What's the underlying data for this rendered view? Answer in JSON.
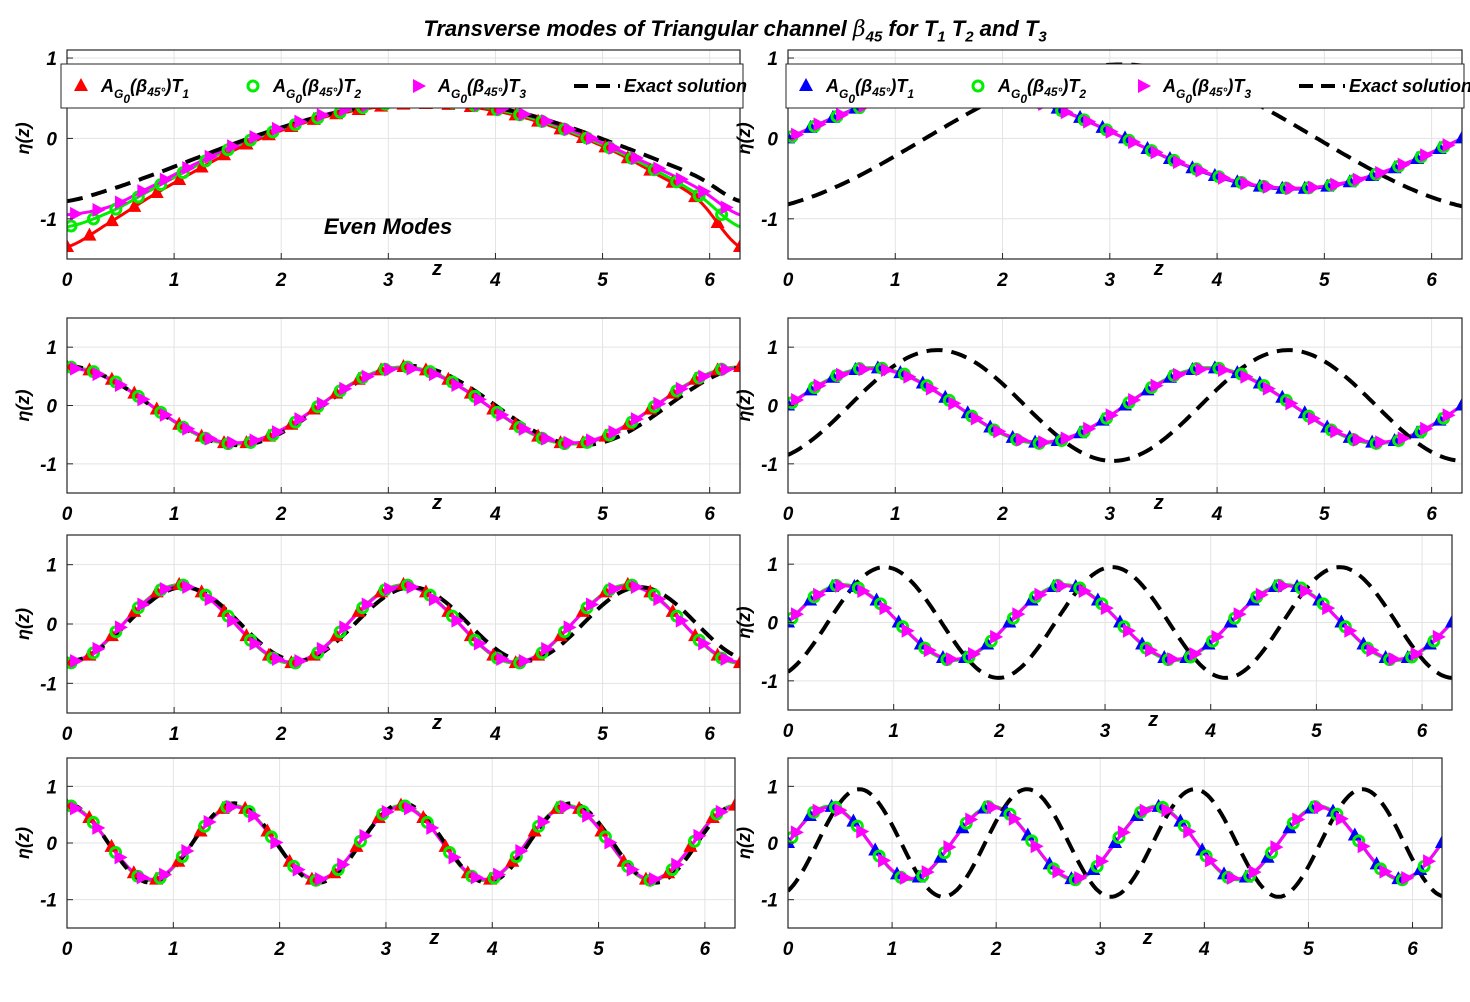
{
  "figure_title": {
    "part1": "Transverse modes of Triangular channel ",
    "beta": "β",
    "beta_sub": "45",
    "part2": " for T",
    "t1": "1",
    "space1": " T",
    "t2": "2",
    "part3": " and T",
    "t3": "3"
  },
  "legend_left": {
    "entries": [
      {
        "prefix": "A",
        "sub": "G",
        "subsub": "0",
        "body": "(β",
        "body_sub": "45°",
        "tail": ")T",
        "tail_sub": "1",
        "color": "#ff0000",
        "marker": "triangle-up"
      },
      {
        "prefix": "A",
        "sub": "G",
        "subsub": "0",
        "body": "(β",
        "body_sub": "45°",
        "tail": ")T",
        "tail_sub": "2",
        "color": "#00ee00",
        "marker": "circle"
      },
      {
        "prefix": "A",
        "sub": "G",
        "subsub": "0",
        "body": "(β",
        "body_sub": "45°",
        "tail": ")T",
        "tail_sub": "3",
        "color": "#ff00ff",
        "marker": "triangle-right"
      },
      {
        "label": "Exact solution",
        "color": "#000000",
        "marker": "dash"
      }
    ]
  },
  "legend_right": {
    "entries": [
      {
        "prefix": "A",
        "sub": "G",
        "subsub": "0",
        "body": "(β",
        "body_sub": "45°",
        "tail": ")T",
        "tail_sub": "1",
        "color": "#0000ff",
        "marker": "triangle-up"
      },
      {
        "prefix": "A",
        "sub": "G",
        "subsub": "0",
        "body": "(β",
        "body_sub": "45°",
        "tail": ")T",
        "tail_sub": "2",
        "color": "#00ee00",
        "marker": "circle"
      },
      {
        "prefix": "A",
        "sub": "G",
        "subsub": "0",
        "body": "(β",
        "body_sub": "45°",
        "tail": ")T",
        "tail_sub": "3",
        "color": "#ff00ff",
        "marker": "triangle-right"
      },
      {
        "label": "Exact solution",
        "color": "#000000",
        "marker": "dash"
      }
    ]
  },
  "annotation": "Even Modes",
  "chart_data": [
    {
      "id": "even-mode-1",
      "type": "line",
      "xlabel": "z",
      "ylabel": "η(z)",
      "xlim": [
        0,
        6.2832
      ],
      "ylim": [
        -1.5,
        1.1
      ],
      "xticks": [
        "0",
        "1",
        "2",
        "3",
        "4",
        "5",
        "6"
      ],
      "yticks": [
        "1",
        "0",
        "-1"
      ],
      "grid": true,
      "series": [
        {
          "name": "A_G0(β45°)T1",
          "color": "#ff0000",
          "marker": "triangle-up",
          "y_samples": [
            -1.35,
            -1.05,
            -0.72,
            -0.42,
            -0.14,
            0.08,
            0.25,
            0.36,
            0.42,
            0.42,
            0.36,
            0.24,
            0.06,
            -0.16,
            -0.44,
            -0.76,
            -1.35
          ]
        },
        {
          "name": "A_G0(β45°)T2",
          "color": "#00ee00",
          "marker": "circle",
          "y_samples": [
            -1.1,
            -0.92,
            -0.64,
            -0.36,
            -0.1,
            0.1,
            0.26,
            0.38,
            0.45,
            0.45,
            0.38,
            0.26,
            0.08,
            -0.14,
            -0.4,
            -0.7,
            -1.1
          ]
        },
        {
          "name": "A_G0(β45°)T3",
          "color": "#ff00ff",
          "marker": "triangle-right",
          "y_samples": [
            -0.95,
            -0.85,
            -0.6,
            -0.33,
            -0.08,
            0.12,
            0.28,
            0.4,
            0.47,
            0.47,
            0.4,
            0.28,
            0.1,
            -0.12,
            -0.36,
            -0.62,
            -0.95
          ]
        },
        {
          "name": "Exact solution",
          "color": "#000000",
          "marker": "dash",
          "y_samples": [
            -0.78,
            -0.64,
            -0.46,
            -0.26,
            -0.06,
            0.12,
            0.27,
            0.38,
            0.45,
            0.46,
            0.4,
            0.29,
            0.13,
            -0.06,
            -0.26,
            -0.48,
            -0.78
          ]
        }
      ]
    },
    {
      "id": "odd-mode-1",
      "type": "line",
      "xlabel": "z",
      "ylabel": "η(z)",
      "xlim": [
        0,
        6.2832
      ],
      "ylim": [
        -1.5,
        1.1
      ],
      "xticks": [
        "0",
        "1",
        "2",
        "3",
        "4",
        "5",
        "6"
      ],
      "yticks": [
        "1",
        "0",
        "-1"
      ],
      "grid": true,
      "series": [
        {
          "name": "A_G0(β45°)T1",
          "color": "#0000ff",
          "marker": "triangle-up",
          "amp": 0.63,
          "freq": 1.0,
          "phase": 0
        },
        {
          "name": "A_G0(β45°)T2",
          "color": "#00ee00",
          "marker": "circle",
          "amp": 0.62,
          "freq": 1.0,
          "phase": 0
        },
        {
          "name": "A_G0(β45°)T3",
          "color": "#ff00ff",
          "marker": "triangle-right",
          "amp": 0.62,
          "freq": 1.0,
          "phase": 0
        },
        {
          "name": "Exact solution",
          "color": "#000000",
          "marker": "dash",
          "amp": 0.92,
          "freq": 0.86,
          "phase": -1.1
        }
      ]
    },
    {
      "id": "even-mode-2",
      "type": "line",
      "xlabel": "z",
      "ylabel": "η(z)",
      "xlim": [
        0,
        6.2832
      ],
      "ylim": [
        -1.5,
        1.5
      ],
      "xticks": [
        "0",
        "1",
        "2",
        "3",
        "4",
        "5",
        "6"
      ],
      "yticks": [
        "1",
        "0",
        "-1"
      ],
      "grid": true,
      "series": [
        {
          "name": "A_G0(β45°)T1",
          "color": "#ff0000",
          "marker": "triangle-up",
          "amp": 0.66,
          "freq": 2.0,
          "phase": 1.5708
        },
        {
          "name": "A_G0(β45°)T2",
          "color": "#00ee00",
          "marker": "circle",
          "amp": 0.66,
          "freq": 2.0,
          "phase": 1.5708
        },
        {
          "name": "A_G0(β45°)T3",
          "color": "#ff00ff",
          "marker": "triangle-right",
          "amp": 0.64,
          "freq": 2.0,
          "phase": 1.5708
        },
        {
          "name": "Exact solution",
          "color": "#000000",
          "marker": "dash",
          "amp": 0.68,
          "freq": 1.95,
          "phase": 1.62
        }
      ]
    },
    {
      "id": "odd-mode-2",
      "type": "line",
      "xlabel": "z",
      "ylabel": "η(z)",
      "xlim": [
        0,
        6.2832
      ],
      "ylim": [
        -1.5,
        1.5
      ],
      "xticks": [
        "0",
        "1",
        "2",
        "3",
        "4",
        "5",
        "6"
      ],
      "yticks": [
        "1",
        "0",
        "-1"
      ],
      "grid": true,
      "series": [
        {
          "name": "A_G0(β45°)T1",
          "color": "#0000ff",
          "marker": "triangle-up",
          "amp": 0.64,
          "freq": 2.0,
          "phase": 0
        },
        {
          "name": "A_G0(β45°)T2",
          "color": "#00ee00",
          "marker": "circle",
          "amp": 0.65,
          "freq": 2.0,
          "phase": 0
        },
        {
          "name": "A_G0(β45°)T3",
          "color": "#ff00ff",
          "marker": "triangle-right",
          "amp": 0.63,
          "freq": 2.0,
          "phase": 0
        },
        {
          "name": "Exact solution",
          "color": "#000000",
          "marker": "dash",
          "amp": 0.95,
          "freq": 1.92,
          "phase": -1.1
        }
      ]
    },
    {
      "id": "even-mode-3",
      "type": "line",
      "xlabel": "z",
      "ylabel": "η(z)",
      "xlim": [
        0,
        6.2832
      ],
      "ylim": [
        -1.5,
        1.5
      ],
      "xticks": [
        "0",
        "1",
        "2",
        "3",
        "4",
        "5",
        "6"
      ],
      "yticks": [
        "1",
        "0",
        "-1"
      ],
      "grid": true,
      "series": [
        {
          "name": "A_G0(β45°)T1",
          "color": "#ff0000",
          "marker": "triangle-up",
          "amp": 0.66,
          "freq": 3.0,
          "phase": -1.5708
        },
        {
          "name": "A_G0(β45°)T2",
          "color": "#00ee00",
          "marker": "circle",
          "amp": 0.66,
          "freq": 3.0,
          "phase": -1.5708
        },
        {
          "name": "A_G0(β45°)T3",
          "color": "#ff00ff",
          "marker": "triangle-right",
          "amp": 0.64,
          "freq": 3.0,
          "phase": -1.5708
        },
        {
          "name": "Exact solution",
          "color": "#000000",
          "marker": "dash",
          "amp": 0.62,
          "freq": 2.95,
          "phase": -1.64
        }
      ]
    },
    {
      "id": "odd-mode-3",
      "type": "line",
      "xlabel": "z",
      "ylabel": "η(z)",
      "xlim": [
        0,
        6.2832
      ],
      "ylim": [
        -1.5,
        1.5
      ],
      "xticks": [
        "0",
        "1",
        "2",
        "3",
        "4",
        "5",
        "6"
      ],
      "yticks": [
        "1",
        "0",
        "-1"
      ],
      "grid": true,
      "series": [
        {
          "name": "A_G0(β45°)T1",
          "color": "#0000ff",
          "marker": "triangle-up",
          "amp": 0.64,
          "freq": 3.0,
          "phase": 0
        },
        {
          "name": "A_G0(β45°)T2",
          "color": "#00ee00",
          "marker": "circle",
          "amp": 0.65,
          "freq": 3.0,
          "phase": 0
        },
        {
          "name": "A_G0(β45°)T3",
          "color": "#ff00ff",
          "marker": "triangle-right",
          "amp": 0.63,
          "freq": 3.0,
          "phase": 0
        },
        {
          "name": "Exact solution",
          "color": "#000000",
          "marker": "dash",
          "amp": 0.95,
          "freq": 2.92,
          "phase": -1.1
        }
      ]
    },
    {
      "id": "even-mode-4",
      "type": "line",
      "xlabel": "z",
      "ylabel": "η(z)",
      "xlim": [
        0,
        6.2832
      ],
      "ylim": [
        -1.5,
        1.5
      ],
      "xticks": [
        "0",
        "1",
        "2",
        "3",
        "4",
        "5",
        "6"
      ],
      "yticks": [
        "1",
        "0",
        "-1"
      ],
      "grid": true,
      "series": [
        {
          "name": "A_G0(β45°)T1",
          "color": "#ff0000",
          "marker": "triangle-up",
          "amp": 0.66,
          "freq": 4.0,
          "phase": 1.5708
        },
        {
          "name": "A_G0(β45°)T2",
          "color": "#00ee00",
          "marker": "circle",
          "amp": 0.66,
          "freq": 4.0,
          "phase": 1.5708
        },
        {
          "name": "A_G0(β45°)T3",
          "color": "#ff00ff",
          "marker": "triangle-right",
          "amp": 0.64,
          "freq": 4.0,
          "phase": 1.5708
        },
        {
          "name": "Exact solution",
          "color": "#000000",
          "marker": "dash",
          "amp": 0.7,
          "freq": 3.97,
          "phase": 1.6
        }
      ]
    },
    {
      "id": "odd-mode-4",
      "type": "line",
      "xlabel": "z",
      "ylabel": "η(z)",
      "xlim": [
        0,
        6.2832
      ],
      "ylim": [
        -1.5,
        1.5
      ],
      "xticks": [
        "0",
        "1",
        "2",
        "3",
        "4",
        "5",
        "6"
      ],
      "yticks": [
        "1",
        "0",
        "-1"
      ],
      "grid": true,
      "series": [
        {
          "name": "A_G0(β45°)T1",
          "color": "#0000ff",
          "marker": "triangle-up",
          "amp": 0.64,
          "freq": 4.0,
          "phase": 0
        },
        {
          "name": "A_G0(β45°)T2",
          "color": "#00ee00",
          "marker": "circle",
          "amp": 0.65,
          "freq": 4.0,
          "phase": 0
        },
        {
          "name": "A_G0(β45°)T3",
          "color": "#ff00ff",
          "marker": "triangle-right",
          "amp": 0.63,
          "freq": 4.0,
          "phase": 0
        },
        {
          "name": "Exact solution",
          "color": "#000000",
          "marker": "dash",
          "amp": 0.95,
          "freq": 3.9,
          "phase": -1.1
        }
      ]
    }
  ]
}
